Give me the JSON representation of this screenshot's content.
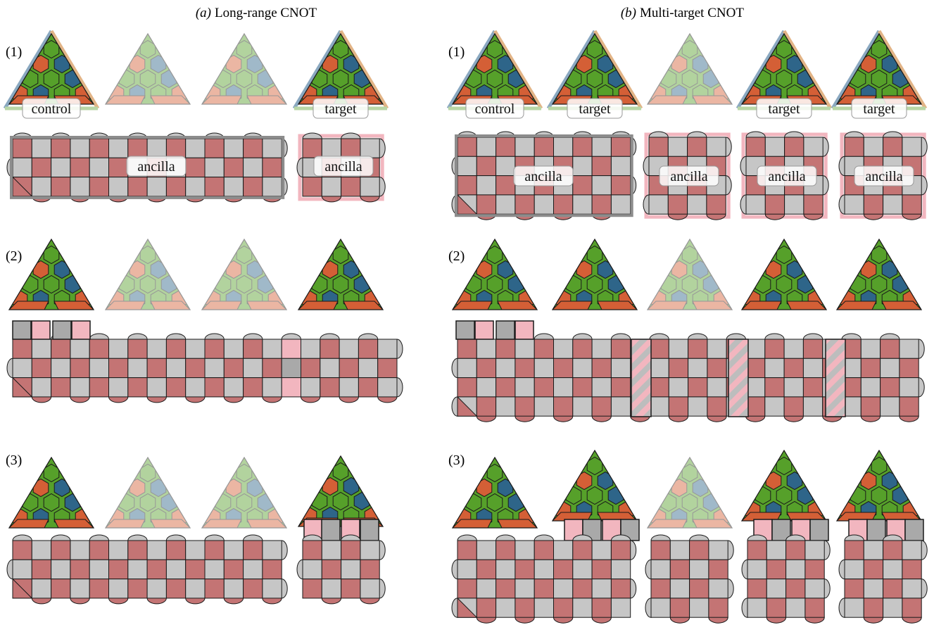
{
  "panel_a": {
    "letter": "(a)",
    "title": "Long-range CNOT"
  },
  "panel_b": {
    "letter": "(b)",
    "title": "Multi-target CNOT"
  },
  "steps": [
    "(1)",
    "(2)",
    "(3)"
  ],
  "labels": {
    "control": "control",
    "target": "target",
    "ancilla": "ancilla"
  },
  "colors": {
    "red": "#d45f36",
    "green": "#56a02a",
    "blue": "#2e6589",
    "brick": "#c47474",
    "gray": "#c6c6c6",
    "pink": "#f2b6bf",
    "darkgray": "#a9a9a9",
    "border_blue": "#8aa8c0",
    "border_orange": "#e2b486",
    "border_green": "#b9d6a6"
  }
}
